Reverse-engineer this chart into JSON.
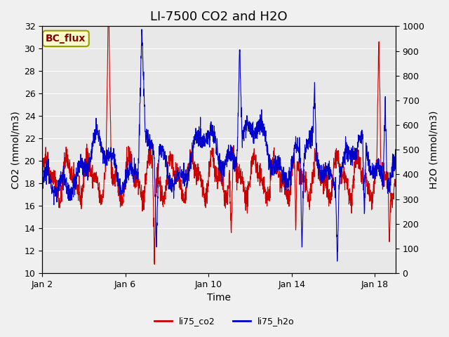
{
  "title": "LI-7500 CO2 and H2O",
  "xlabel": "Time",
  "ylabel_left": "CO2 (mmol/m3)",
  "ylabel_right": "H2O (mmol/m3)",
  "annotation": "BC_flux",
  "ylim_left": [
    10,
    32
  ],
  "ylim_right": [
    0,
    1000
  ],
  "yticks_left": [
    10,
    12,
    14,
    16,
    18,
    20,
    22,
    24,
    26,
    28,
    30,
    32
  ],
  "yticks_right": [
    0,
    100,
    200,
    300,
    400,
    500,
    600,
    700,
    800,
    900,
    1000
  ],
  "xtick_positions": [
    0,
    4,
    8,
    12,
    16
  ],
  "xtick_labels": [
    "Jan 2",
    "Jan 6",
    "Jan 10",
    "Jan 14",
    "Jan 18"
  ],
  "co2_color": "#cc0000",
  "h2o_color": "#0000cc",
  "plot_bg": "#e8e8e8",
  "fig_bg": "#f0f0f0",
  "legend_labels": [
    "li75_co2",
    "li75_h2o"
  ],
  "title_fontsize": 13,
  "axis_label_fontsize": 10,
  "tick_fontsize": 9,
  "legend_fontsize": 9,
  "annotation_fontsize": 10,
  "xlim": [
    0,
    17
  ]
}
